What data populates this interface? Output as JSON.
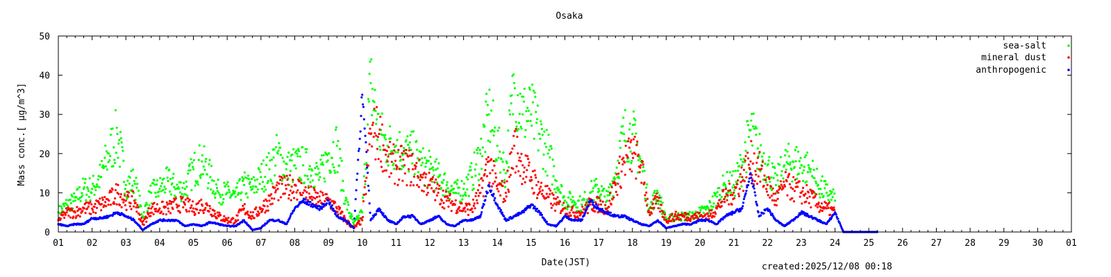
{
  "chart_data": {
    "type": "scatter",
    "title": "Osaka",
    "xlabel": "Date(JST)",
    "ylabel": "Mass conc.[ μg/m^3]",
    "footer": "created:2025/12/08 00:18",
    "xlim": [
      1,
      31
    ],
    "ylim": [
      0,
      50
    ],
    "grid": false,
    "legend_position": "top-right",
    "x_tick_labels": [
      "01",
      "02",
      "03",
      "04",
      "05",
      "06",
      "07",
      "08",
      "09",
      "10",
      "11",
      "12",
      "13",
      "14",
      "15",
      "16",
      "17",
      "18",
      "19",
      "20",
      "21",
      "22",
      "23",
      "24",
      "25",
      "26",
      "27",
      "28",
      "29",
      "30",
      "01"
    ],
    "y_ticks": [
      0,
      10,
      20,
      30,
      40,
      50
    ],
    "x": [
      1,
      1.25,
      1.5,
      1.75,
      2,
      2.25,
      2.5,
      2.75,
      3,
      3.25,
      3.5,
      3.75,
      4,
      4.25,
      4.5,
      4.75,
      5,
      5.25,
      5.5,
      5.75,
      6,
      6.25,
      6.5,
      6.75,
      7,
      7.25,
      7.5,
      7.75,
      8,
      8.25,
      8.5,
      8.75,
      9,
      9.25,
      9.5,
      9.75,
      10,
      10.25,
      10.5,
      10.75,
      11,
      11.25,
      11.5,
      11.75,
      12,
      12.25,
      12.5,
      12.75,
      13,
      13.25,
      13.5,
      13.75,
      14,
      14.25,
      14.5,
      14.75,
      15,
      15.25,
      15.5,
      15.75,
      16,
      16.25,
      16.5,
      16.75,
      17,
      17.25,
      17.5,
      17.75,
      18,
      18.25,
      18.5,
      18.75,
      19,
      19.25,
      19.5,
      19.75,
      20,
      20.25,
      20.5,
      20.75,
      21,
      21.25,
      21.5,
      21.75,
      22,
      22.25,
      22.5,
      22.75,
      23,
      23.25,
      23.5,
      23.75,
      24,
      24.25,
      24.5,
      24.75,
      25,
      25.25
    ],
    "series": [
      {
        "name": "sea-salt",
        "color": "#00ff00",
        "values": [
          5,
          7,
          8,
          11,
          11,
          14,
          20,
          25,
          12,
          13,
          4,
          10,
          11,
          13,
          11,
          11,
          16,
          18,
          14,
          10,
          10,
          9,
          12,
          11,
          14,
          16,
          20,
          16,
          17,
          17,
          16,
          14,
          20,
          22,
          8,
          2,
          5,
          38,
          25,
          22,
          22,
          20,
          20,
          17,
          16,
          14,
          12,
          10,
          11,
          14,
          20,
          30,
          22,
          15,
          38,
          30,
          30,
          25,
          20,
          13,
          8,
          8,
          7,
          10,
          11,
          8,
          15,
          25,
          25,
          18,
          6,
          10,
          3,
          4,
          4,
          4,
          5,
          6,
          9,
          12,
          12,
          17,
          26,
          20,
          17,
          12,
          17,
          18,
          17,
          16,
          12,
          10,
          8,
          null,
          null,
          null,
          null,
          null
        ]
      },
      {
        "name": "mineral dust",
        "color": "#ff0000",
        "values": [
          3,
          5,
          5,
          6,
          6,
          7,
          8,
          10,
          8,
          8,
          2,
          6,
          6,
          6,
          7,
          7,
          6,
          7,
          6,
          4,
          3,
          3,
          6,
          4,
          6,
          8,
          11,
          11,
          12,
          10,
          9,
          8,
          8,
          6,
          3,
          1,
          3,
          25,
          25,
          18,
          17,
          17,
          16,
          14,
          12,
          10,
          8,
          7,
          6,
          6,
          10,
          18,
          11,
          10,
          22,
          17,
          14,
          11,
          9,
          7,
          6,
          5,
          5,
          7,
          7,
          6,
          12,
          18,
          20,
          17,
          5,
          8,
          3,
          4,
          4,
          4,
          4,
          4,
          6,
          9,
          10,
          14,
          18,
          16,
          12,
          8,
          12,
          11,
          10,
          9,
          7,
          6,
          5,
          null,
          null,
          null,
          null,
          null
        ]
      },
      {
        "name": "anthropogenic",
        "color": "#0000ff",
        "values": [
          2,
          1.5,
          2,
          2,
          3.5,
          3.5,
          4,
          5,
          4,
          3,
          0.5,
          2,
          3,
          3,
          3,
          1.5,
          2,
          1.5,
          2.5,
          2,
          1.5,
          1.5,
          3,
          0.5,
          1,
          3,
          3,
          2,
          6,
          8,
          7,
          6,
          8,
          4,
          3,
          1,
          35,
          3,
          6,
          3,
          2,
          4,
          4,
          2,
          3,
          4,
          2,
          1.5,
          3,
          3,
          4,
          12,
          7,
          3,
          4,
          5,
          7,
          5,
          2,
          1.5,
          4,
          3,
          3,
          8,
          6,
          5,
          4,
          4,
          3,
          2,
          1.5,
          3,
          1,
          1.5,
          2,
          2,
          3,
          3,
          2,
          4,
          5,
          6,
          15,
          4,
          6,
          3,
          1.5,
          3,
          5,
          4,
          3,
          2,
          5,
          0,
          0,
          0,
          0,
          0
        ]
      }
    ]
  }
}
